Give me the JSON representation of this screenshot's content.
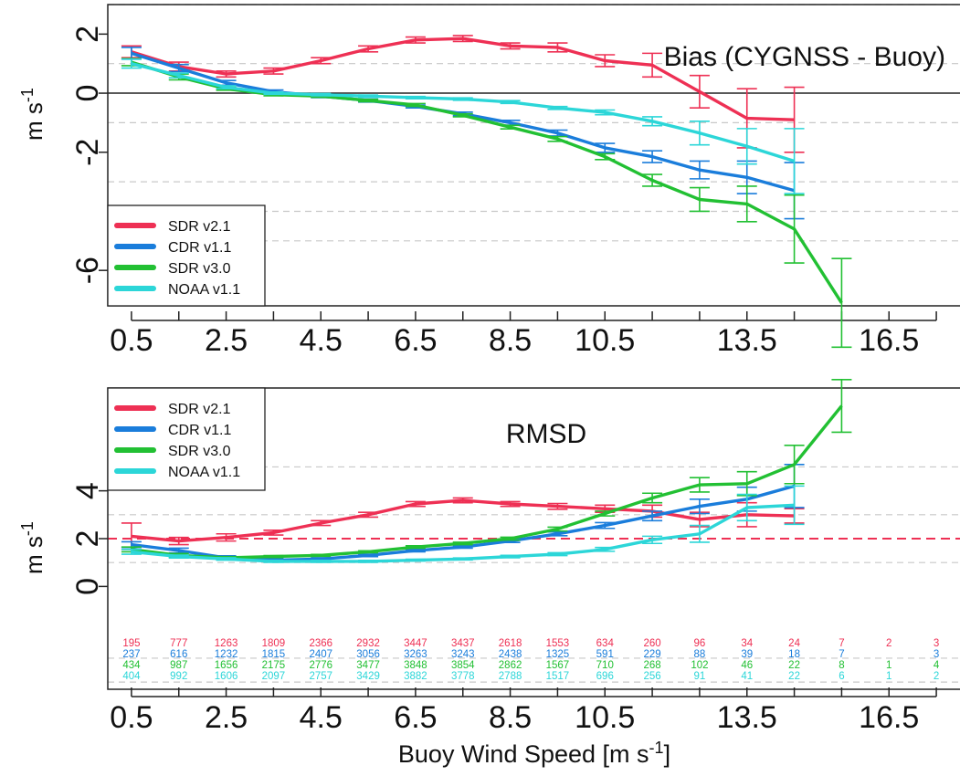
{
  "chart_data": [
    {
      "type": "line",
      "title": "Bias (CYGNSS - Buoy)",
      "xlabel": "",
      "ylabel": "m s",
      "ylabel_sup": "-1",
      "xlim": [
        0,
        18
      ],
      "ylim": [
        -7.2,
        3
      ],
      "yticks": [
        -6,
        -2,
        0,
        2
      ],
      "xticks": [
        0.5,
        2.5,
        4.5,
        6.5,
        8.5,
        10.5,
        13.5,
        16.5
      ],
      "grid_y": [
        -5,
        -4,
        -3,
        -1,
        1,
        3
      ],
      "reference_line": 0,
      "legend_position": "bottom-left",
      "series": [
        {
          "name": "SDR v2.1",
          "color": "#ee3054",
          "x": [
            0.5,
            1.5,
            2.5,
            3.5,
            4.5,
            5.5,
            6.5,
            7.5,
            8.5,
            9.5,
            10.5,
            11.5,
            12.5,
            13.5,
            14.5
          ],
          "values": [
            1.4,
            0.9,
            0.65,
            0.75,
            1.1,
            1.5,
            1.8,
            1.85,
            1.6,
            1.55,
            1.1,
            0.95,
            0.05,
            -0.85,
            -0.9
          ],
          "error": [
            0.2,
            0.15,
            0.1,
            0.1,
            0.1,
            0.1,
            0.1,
            0.1,
            0.1,
            0.15,
            0.2,
            0.4,
            0.55,
            1.0,
            1.1
          ]
        },
        {
          "name": "CDR v1.1",
          "color": "#1a7ddb",
          "x": [
            0.5,
            1.5,
            2.5,
            3.5,
            4.5,
            5.5,
            6.5,
            7.5,
            8.5,
            9.5,
            10.5,
            11.5,
            12.5,
            13.5,
            14.5
          ],
          "values": [
            1.35,
            0.85,
            0.35,
            0.05,
            -0.1,
            -0.25,
            -0.45,
            -0.7,
            -1.0,
            -1.35,
            -1.85,
            -2.15,
            -2.6,
            -2.85,
            -3.3
          ],
          "error": [
            0.2,
            0.12,
            0.08,
            0.06,
            0.05,
            0.05,
            0.05,
            0.06,
            0.08,
            0.1,
            0.15,
            0.2,
            0.3,
            0.55,
            0.95
          ]
        },
        {
          "name": "SDR v3.0",
          "color": "#22c033",
          "x": [
            0.5,
            1.5,
            2.5,
            3.5,
            4.5,
            5.5,
            6.5,
            7.5,
            8.5,
            9.5,
            10.5,
            11.5,
            12.5,
            13.5,
            14.5,
            15.5
          ],
          "values": [
            1.05,
            0.55,
            0.15,
            -0.05,
            -0.1,
            -0.25,
            -0.4,
            -0.75,
            -1.15,
            -1.55,
            -2.15,
            -2.95,
            -3.6,
            -3.75,
            -4.6,
            -7.1
          ],
          "error": [
            0.12,
            0.1,
            0.05,
            0.04,
            0.04,
            0.04,
            0.05,
            0.05,
            0.06,
            0.08,
            0.1,
            0.2,
            0.4,
            0.6,
            1.15,
            1.5
          ]
        },
        {
          "name": "NOAA v1.1",
          "color": "#2cd6d8",
          "x": [
            0.5,
            1.5,
            2.5,
            3.5,
            4.5,
            5.5,
            6.5,
            7.5,
            8.5,
            9.5,
            10.5,
            11.5,
            12.5,
            13.5,
            14.5
          ],
          "values": [
            1.0,
            0.6,
            0.2,
            0.0,
            -0.05,
            -0.1,
            -0.15,
            -0.2,
            -0.3,
            -0.5,
            -0.65,
            -0.95,
            -1.35,
            -1.8,
            -2.3
          ],
          "error": [
            0.15,
            0.08,
            0.05,
            0.04,
            0.04,
            0.04,
            0.04,
            0.04,
            0.05,
            0.05,
            0.08,
            0.15,
            0.4,
            0.6,
            1.1
          ]
        }
      ]
    },
    {
      "type": "line",
      "title": "RMSD",
      "xlabel": "Buoy Wind Speed [m s",
      "xlabel_sup": "-1",
      "xlabel_end": "]",
      "ylabel": "m s",
      "ylabel_sup": "-1",
      "xlim": [
        0,
        18
      ],
      "ylim": [
        -4.3,
        8.3
      ],
      "yticks": [
        0,
        2,
        4
      ],
      "xticks": [
        0.5,
        2.5,
        4.5,
        6.5,
        8.5,
        10.5,
        13.5,
        16.5
      ],
      "grid_y": [
        -4,
        -3,
        1,
        3,
        5
      ],
      "reference_line": 2,
      "legend_position": "top-left",
      "series": [
        {
          "name": "SDR v2.1",
          "color": "#ee3054",
          "x": [
            0.5,
            1.5,
            2.5,
            3.5,
            4.5,
            5.5,
            6.5,
            7.5,
            8.5,
            9.5,
            10.5,
            11.5,
            12.5,
            13.5,
            14.5
          ],
          "values": [
            2.1,
            1.9,
            2.05,
            2.25,
            2.65,
            3.0,
            3.45,
            3.6,
            3.45,
            3.35,
            3.25,
            3.15,
            2.8,
            3.0,
            2.95
          ],
          "error": [
            0.55,
            0.15,
            0.15,
            0.1,
            0.1,
            0.1,
            0.1,
            0.1,
            0.1,
            0.12,
            0.15,
            0.25,
            0.3,
            0.5,
            0.3
          ]
        },
        {
          "name": "CDR v1.1",
          "color": "#1a7ddb",
          "x": [
            0.5,
            1.5,
            2.5,
            3.5,
            4.5,
            5.5,
            6.5,
            7.5,
            8.5,
            9.5,
            10.5,
            11.5,
            12.5,
            13.5,
            14.5
          ],
          "values": [
            1.75,
            1.5,
            1.2,
            1.1,
            1.15,
            1.3,
            1.5,
            1.65,
            1.9,
            2.2,
            2.55,
            2.95,
            3.35,
            3.65,
            4.2
          ],
          "error": [
            0.12,
            0.1,
            0.08,
            0.05,
            0.05,
            0.05,
            0.05,
            0.05,
            0.06,
            0.08,
            0.12,
            0.2,
            0.3,
            0.5,
            0.9
          ]
        },
        {
          "name": "SDR v3.0",
          "color": "#22c033",
          "x": [
            0.5,
            1.5,
            2.5,
            3.5,
            4.5,
            5.5,
            6.5,
            7.5,
            8.5,
            9.5,
            10.5,
            11.5,
            12.5,
            13.5,
            14.5,
            15.5
          ],
          "values": [
            1.55,
            1.3,
            1.2,
            1.25,
            1.3,
            1.45,
            1.65,
            1.8,
            2.0,
            2.4,
            3.05,
            3.7,
            4.25,
            4.3,
            5.1,
            7.55
          ],
          "error": [
            0.1,
            0.08,
            0.05,
            0.04,
            0.04,
            0.04,
            0.05,
            0.05,
            0.06,
            0.08,
            0.1,
            0.2,
            0.3,
            0.5,
            0.8,
            1.1
          ]
        },
        {
          "name": "NOAA v1.1",
          "color": "#2cd6d8",
          "x": [
            0.5,
            1.5,
            2.5,
            3.5,
            4.5,
            5.5,
            6.5,
            7.5,
            8.5,
            9.5,
            10.5,
            11.5,
            12.5,
            13.5,
            14.5
          ],
          "values": [
            1.45,
            1.25,
            1.15,
            1.05,
            1.05,
            1.05,
            1.1,
            1.15,
            1.25,
            1.35,
            1.55,
            1.95,
            2.2,
            3.3,
            3.4
          ],
          "error": [
            0.1,
            0.06,
            0.05,
            0.04,
            0.04,
            0.04,
            0.04,
            0.04,
            0.05,
            0.06,
            0.08,
            0.15,
            0.35,
            0.55,
            0.8
          ]
        }
      ],
      "counts": [
        {
          "series": "SDR v2.1",
          "color": "#ee3054",
          "values": [
            "195",
            "777",
            "1263",
            "1809",
            "2366",
            "2932",
            "3447",
            "3437",
            "2618",
            "1553",
            "634",
            "260",
            "96",
            "34",
            "24",
            "7",
            "2",
            "3"
          ]
        },
        {
          "series": "CDR v1.1",
          "color": "#1a7ddb",
          "values": [
            "237",
            "616",
            "1232",
            "1815",
            "2407",
            "3056",
            "3263",
            "3243",
            "2438",
            "1325",
            "591",
            "229",
            "88",
            "39",
            "18",
            "7",
            "",
            "3"
          ]
        },
        {
          "series": "SDR v3.0",
          "color": "#22c033",
          "values": [
            "434",
            "987",
            "1656",
            "2175",
            "2776",
            "3477",
            "3848",
            "3854",
            "2862",
            "1567",
            "710",
            "268",
            "102",
            "46",
            "22",
            "8",
            "1",
            "4"
          ]
        },
        {
          "series": "NOAA v1.1",
          "color": "#2cd6d8",
          "values": [
            "404",
            "992",
            "1606",
            "2097",
            "2757",
            "3429",
            "3882",
            "3778",
            "2788",
            "1517",
            "696",
            "256",
            "91",
            "41",
            "22",
            "6",
            "1",
            "2"
          ]
        }
      ]
    }
  ]
}
